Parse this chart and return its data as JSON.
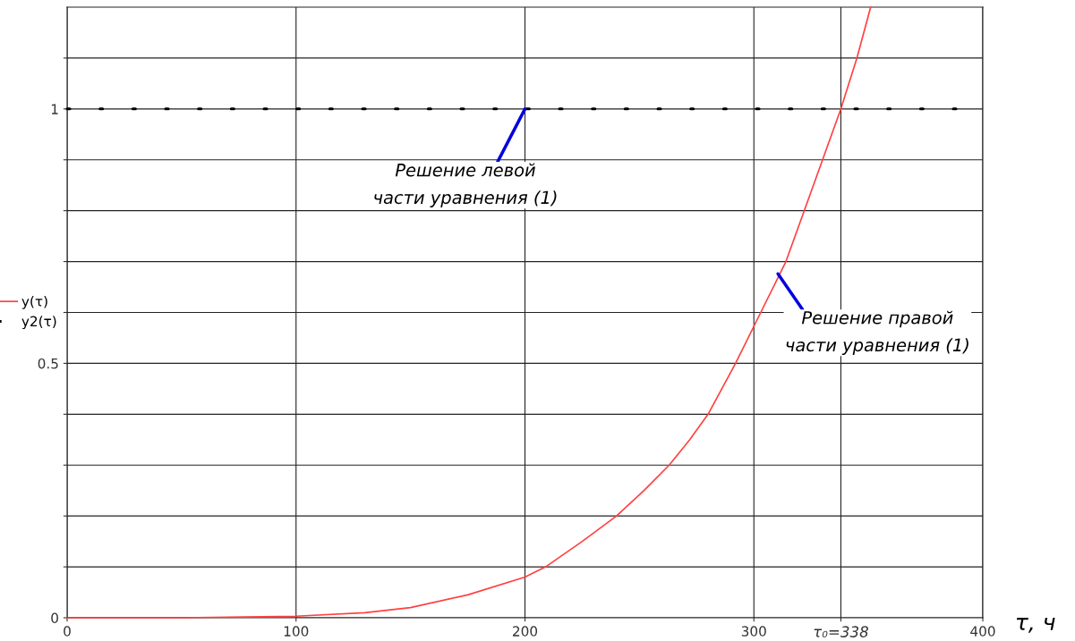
{
  "chart_data": {
    "type": "line",
    "xlabel": "τ, ч",
    "x": [
      0,
      50,
      100,
      130,
      150,
      175,
      200,
      209,
      225,
      240,
      252,
      263,
      272,
      280,
      286,
      292,
      303,
      314,
      322,
      330,
      338,
      345,
      351
    ],
    "series": [
      {
        "name": "y(τ)",
        "color": "#ff4040",
        "line_style": "solid",
        "values": [
          0,
          0,
          0.003,
          0.01,
          0.02,
          0.045,
          0.08,
          0.1,
          0.15,
          0.2,
          0.25,
          0.3,
          0.35,
          0.4,
          0.45,
          0.5,
          0.6,
          0.7,
          0.8,
          0.9,
          1.0,
          1.1,
          1.2
        ]
      },
      {
        "name": "y2(τ)",
        "color": "#000000",
        "line_style": "dotted",
        "x": [
          0,
          400
        ],
        "values": [
          1,
          1
        ]
      }
    ],
    "xlim": [
      0,
      400
    ],
    "ylim": [
      0,
      1.2
    ],
    "xticks": [
      0,
      100,
      200,
      300,
      {
        "value": 338,
        "label": "τ₀=338"
      },
      400
    ],
    "yticks": [
      0,
      {
        "value": 0.1,
        "label": null
      },
      {
        "value": 0.2,
        "label": null
      },
      {
        "value": 0.3,
        "label": null
      },
      {
        "value": 0.4,
        "label": null
      },
      0.5,
      {
        "value": 0.6,
        "label": null
      },
      {
        "value": 0.7,
        "label": null
      },
      {
        "value": 0.8,
        "label": null
      },
      {
        "value": 0.9,
        "label": null
      },
      1,
      {
        "value": 1.1,
        "label": null
      }
    ],
    "grid": true,
    "legend": "left",
    "annotations": [
      {
        "text": "Решение левой\nчасти уравнения (1)",
        "x": 200,
        "y": 1
      },
      {
        "text": "Решение правой\nчасти уравнения (1)",
        "x": 310.5,
        "y": 0.676
      }
    ]
  }
}
